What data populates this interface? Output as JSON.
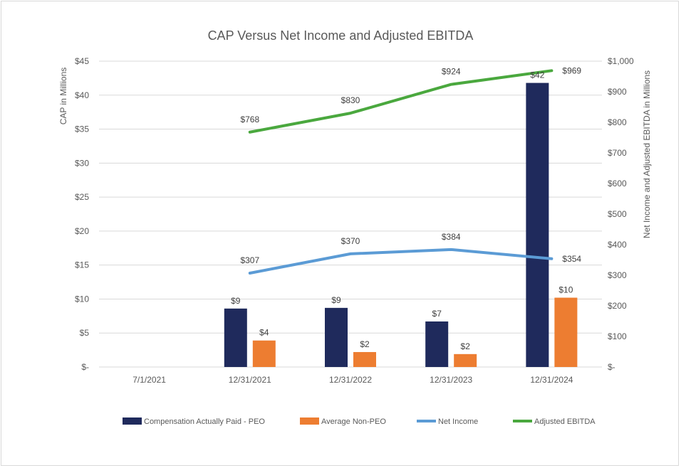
{
  "chart_data": {
    "type": "bar",
    "title": "CAP Versus Net Income and Adjusted EBITDA",
    "categories": [
      "7/1/2021",
      "12/31/2021",
      "12/31/2022",
      "12/31/2023",
      "12/31/2024"
    ],
    "ylabel": "CAP in Millions",
    "y2label": "Net Income and Adjusted EBITDA in Millions",
    "ylim": [
      0,
      45
    ],
    "y2lim": [
      0,
      1000
    ],
    "y_ticks": [
      "$-",
      "$5",
      "$10",
      "$15",
      "$20",
      "$25",
      "$30",
      "$35",
      "$40",
      "$45"
    ],
    "y_tick_values": [
      0,
      5,
      10,
      15,
      20,
      25,
      30,
      35,
      40,
      45
    ],
    "y2_ticks": [
      "$-",
      "$100",
      "$200",
      "$300",
      "$400",
      "$500",
      "$600",
      "$700",
      "$800",
      "$900",
      "$1,000"
    ],
    "y2_tick_values": [
      0,
      100,
      200,
      300,
      400,
      500,
      600,
      700,
      800,
      900,
      1000
    ],
    "grid": true,
    "legend_position": "bottom",
    "series": [
      {
        "name": "Compensation Actually Paid - PEO",
        "kind": "bar",
        "axis": "left",
        "color": "#1f2a5c",
        "values": [
          null,
          8.6,
          8.7,
          6.7,
          41.8
        ],
        "labels": [
          "",
          "$9",
          "$9",
          "$7",
          "$42"
        ]
      },
      {
        "name": "Average Non-PEO",
        "kind": "bar",
        "axis": "left",
        "color": "#ed7d31",
        "values": [
          null,
          3.9,
          2.2,
          1.9,
          10.2
        ],
        "labels": [
          "",
          "$4",
          "$2",
          "$2",
          "$10"
        ]
      },
      {
        "name": "Net Income",
        "kind": "line",
        "axis": "right",
        "color": "#5b9bd5",
        "values": [
          null,
          307,
          370,
          384,
          354
        ],
        "labels": [
          "",
          "$307",
          "$370",
          "$384",
          "$354"
        ]
      },
      {
        "name": "Adjusted EBITDA",
        "kind": "line",
        "axis": "right",
        "color": "#4aa83e",
        "values": [
          null,
          768,
          830,
          924,
          969
        ],
        "labels": [
          "",
          "$768",
          "$830",
          "$924",
          "$969"
        ]
      }
    ]
  }
}
